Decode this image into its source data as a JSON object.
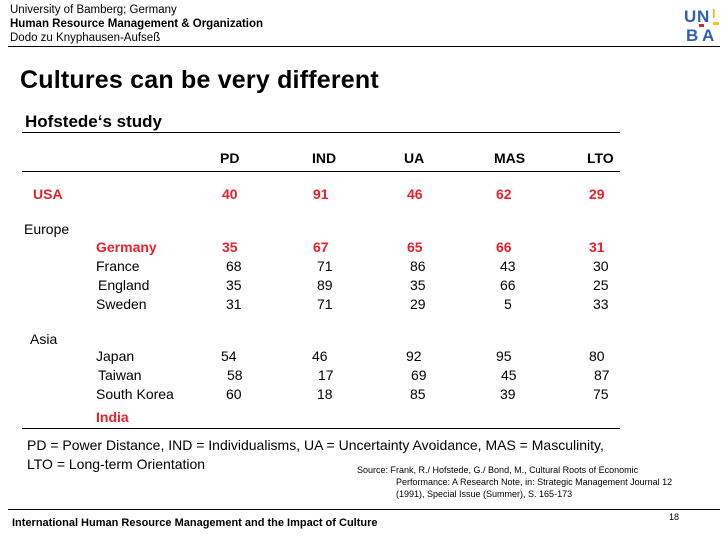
{
  "header": {
    "line1": "University of Bamberg; Germany",
    "line2": "Human Resource Management & Organization",
    "line3": "Dodo zu Knyphausen-Aufseß"
  },
  "logo": {
    "letters": [
      "U",
      "N",
      "I",
      "B",
      "A"
    ],
    "colors": {
      "blue": "#2f5fb0",
      "yellow": "#f2c318",
      "red": "#d8262e"
    }
  },
  "title": "Cultures can be very different",
  "subtitle": "Hofstede‘s study",
  "table": {
    "columns": [
      "PD",
      "IND",
      "UA",
      "MAS",
      "LTO"
    ],
    "usa": {
      "name": "USA",
      "values": [
        "40",
        "91",
        "46",
        "62",
        "29"
      ]
    },
    "europe_label": "Europe",
    "europe": [
      {
        "name": "Germany",
        "values": [
          "35",
          "67",
          "65",
          "66",
          "31"
        ]
      },
      {
        "name": "France",
        "values": [
          "68",
          "71",
          "86",
          "43",
          "30"
        ]
      },
      {
        "name": "England",
        "values": [
          "35",
          "89",
          "35",
          "66",
          "25"
        ]
      },
      {
        "name": "Sweden",
        "values": [
          "31",
          "71",
          "29",
          "5",
          "33"
        ]
      }
    ],
    "asia_label": "Asia",
    "asia": [
      {
        "name": "Japan",
        "values": [
          "54",
          "46",
          "92",
          "95",
          "80"
        ]
      },
      {
        "name": "Taiwan",
        "values": [
          "58",
          "17",
          "69",
          "45",
          "87"
        ]
      },
      {
        "name": "South Korea",
        "values": [
          "60",
          "18",
          "85",
          "39",
          "75"
        ]
      },
      {
        "name": "India",
        "values": []
      }
    ]
  },
  "legend": {
    "line1": "PD = Power Distance, IND = Individualisms, UA = Uncertainty Avoidance, MAS = Masculinity,",
    "line2": "LTO = Long-term Orientation"
  },
  "source": {
    "line1": "Source:  Frank, R./ Hofstede, G./ Bond, M., Cultural Roots of Economic",
    "line2": "Performance: A Research Note, in: Strategic Management Journal 12",
    "line3": "(1991), Special Issue (Summer), S. 165-173"
  },
  "footer": "International Human Resource Management and the Impact of Culture",
  "page_number": "18",
  "colors": {
    "accent_red": "#e8202a",
    "text": "#000000"
  }
}
